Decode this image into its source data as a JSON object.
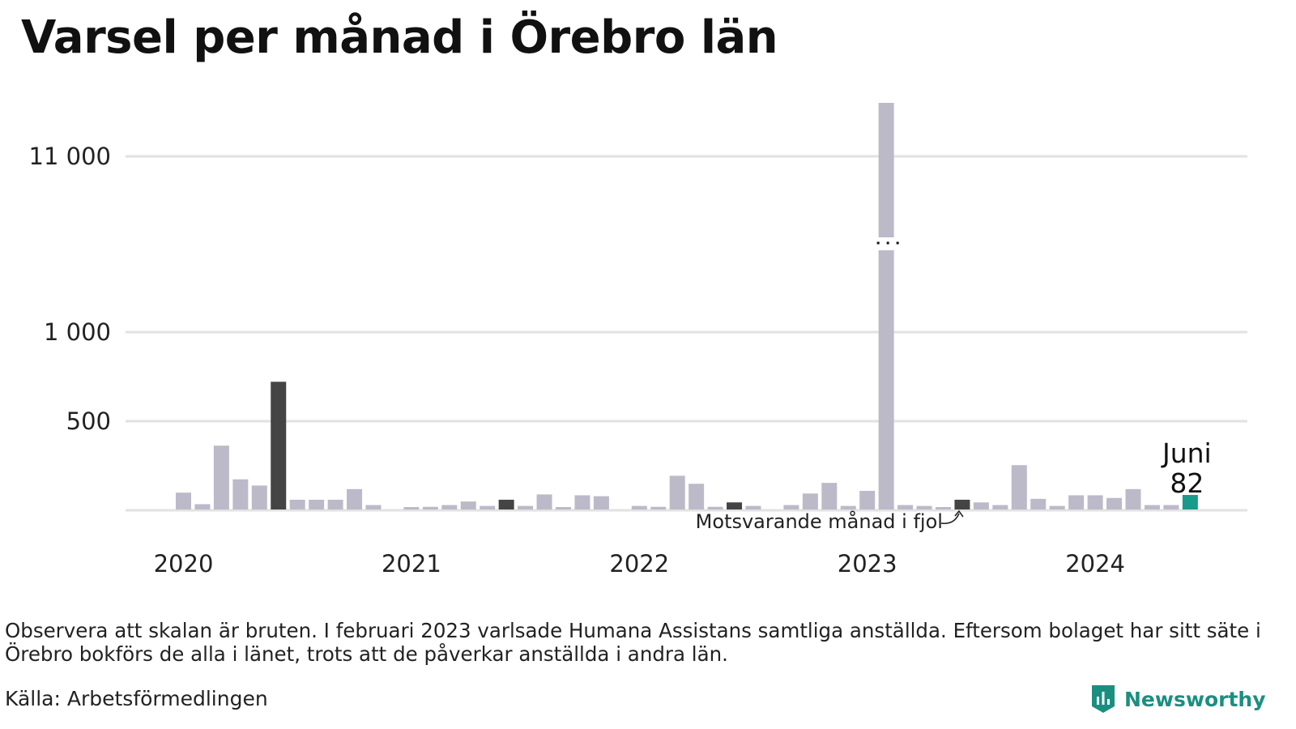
{
  "title": "Varsel per månad i Örebro län",
  "note": "Observera att skalan är bruten. I februari 2023 varlsade Humana Assistans samtliga anställda. Eftersom bolaget har sitt säte i Örebro bokförs de alla i länet, trots att de påverkar anställda i andra län.",
  "source": "Källa: Arbetsförmedlingen",
  "brand": "Newsworthy",
  "annotations": {
    "previous_year": "Motsvarande månad i fjol",
    "current_month": "Juni",
    "current_value": "82"
  },
  "colors": {
    "default_bar": "#bcbac9",
    "same_month_bar": "#444444",
    "current_bar": "#1a9a8a",
    "grid": "#e2e2e2",
    "brand": "#1a8f80"
  },
  "chart_data": {
    "type": "bar",
    "broken_scale": true,
    "y_ticks": [
      {
        "value": 500,
        "label": "500"
      },
      {
        "value": 1000,
        "label": "1 000"
      },
      {
        "value": 11000,
        "label": "11 000"
      }
    ],
    "year_labels": [
      "2020",
      "2021",
      "2022",
      "2023",
      "2024"
    ],
    "months": [
      "2020-01",
      "2020-02",
      "2020-03",
      "2020-04",
      "2020-05",
      "2020-06",
      "2020-07",
      "2020-08",
      "2020-09",
      "2020-10",
      "2020-11",
      "2020-12",
      "2021-01",
      "2021-02",
      "2021-03",
      "2021-04",
      "2021-05",
      "2021-06",
      "2021-07",
      "2021-08",
      "2021-09",
      "2021-10",
      "2021-11",
      "2021-12",
      "2022-01",
      "2022-02",
      "2022-03",
      "2022-04",
      "2022-05",
      "2022-06",
      "2022-07",
      "2022-08",
      "2022-09",
      "2022-10",
      "2022-11",
      "2022-12",
      "2023-01",
      "2023-02",
      "2023-03",
      "2023-04",
      "2023-05",
      "2023-06",
      "2023-07",
      "2023-08",
      "2023-09",
      "2023-10",
      "2023-11",
      "2023-12",
      "2024-01",
      "2024-02",
      "2024-03",
      "2024-04",
      "2024-05",
      "2024-06"
    ],
    "values": [
      95,
      30,
      360,
      170,
      135,
      720,
      55,
      55,
      55,
      115,
      25,
      0,
      10,
      15,
      25,
      45,
      20,
      55,
      20,
      85,
      5,
      80,
      75,
      0,
      20,
      15,
      190,
      145,
      15,
      40,
      20,
      0,
      25,
      90,
      150,
      20,
      105,
      12000,
      25,
      20,
      10,
      55,
      40,
      25,
      250,
      60,
      20,
      80,
      80,
      65,
      115,
      25,
      25,
      82
    ],
    "highlight_same_month": [
      "2020-06",
      "2021-06",
      "2022-06",
      "2023-06"
    ],
    "highlight_current": "2024-06"
  }
}
